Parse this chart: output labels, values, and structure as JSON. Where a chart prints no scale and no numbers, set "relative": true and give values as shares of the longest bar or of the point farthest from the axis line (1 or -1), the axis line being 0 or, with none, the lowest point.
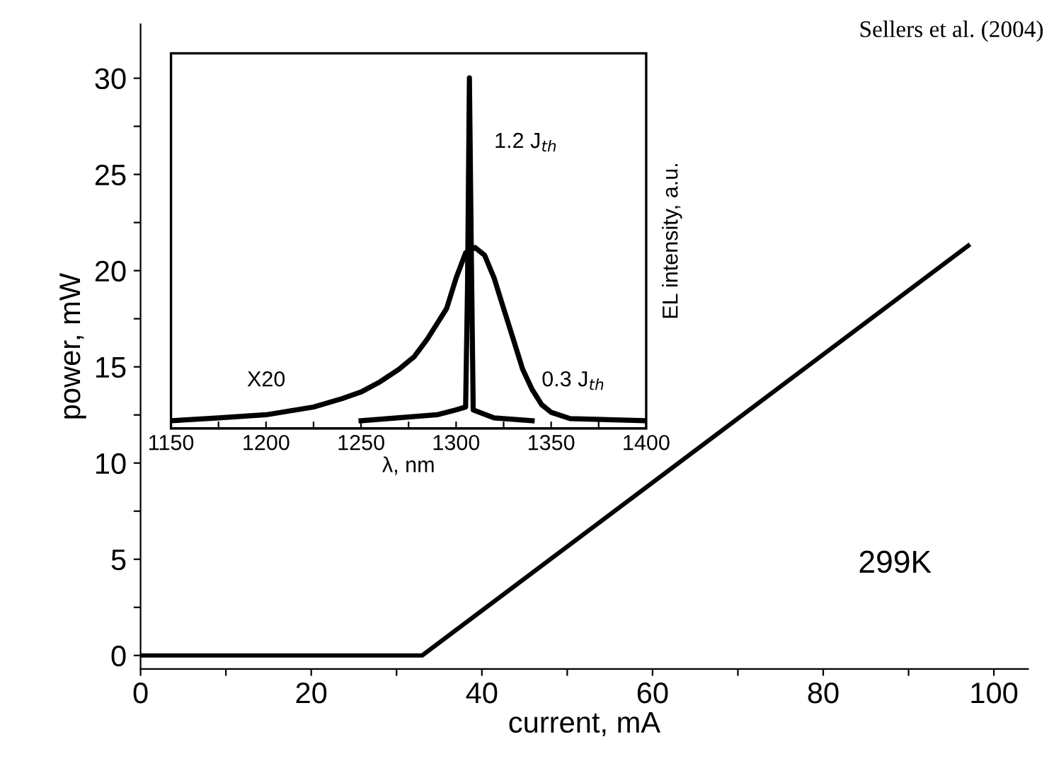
{
  "chart_data": [
    {
      "type": "line",
      "xlabel": "current, mA",
      "ylabel": "power, mW",
      "series": [
        {
          "color": "#000000",
          "x": [
            0,
            33,
            97
          ],
          "values": [
            0,
            0,
            21.3
          ]
        }
      ],
      "xlim": [
        0,
        104
      ],
      "ylim": [
        -0.7,
        32.8
      ],
      "xticks": [
        0,
        {
          "value": 10,
          "label": null
        },
        20,
        {
          "value": 30,
          "label": null
        },
        40,
        {
          "value": 50,
          "label": null
        },
        60,
        {
          "value": 70,
          "label": null
        },
        80,
        {
          "value": 90,
          "label": null
        },
        100
      ],
      "yticks": [
        0,
        {
          "value": 2.5,
          "label": null
        },
        5,
        {
          "value": 7.5,
          "label": null
        },
        10,
        {
          "value": 12.5,
          "label": null
        },
        15,
        {
          "value": 17.5,
          "label": null
        },
        20,
        {
          "value": 22.5,
          "label": null
        },
        25,
        {
          "value": 27.5,
          "label": null
        },
        30
      ],
      "annotations": [
        "Sellers et al. (2004)",
        "299K"
      ],
      "grid": false,
      "legend": false
    },
    {
      "type": "line",
      "xlabel": "λ, nm",
      "ylabel": "EL intensity, a.u.",
      "relative": true,
      "series": [
        {
          "name": "0.3 J$_{th}$",
          "color": "#000000",
          "x": [
            1150,
            1175,
            1200,
            1225,
            1240,
            1250,
            1260,
            1270,
            1278,
            1285,
            1290,
            1295,
            1300,
            1305,
            1310,
            1315,
            1320,
            1325,
            1330,
            1335,
            1340,
            1345,
            1350,
            1360,
            1400
          ],
          "values": [
            0.022,
            0.03,
            0.039,
            0.061,
            0.085,
            0.104,
            0.133,
            0.169,
            0.205,
            0.256,
            0.299,
            0.342,
            0.429,
            0.501,
            0.516,
            0.494,
            0.429,
            0.342,
            0.256,
            0.169,
            0.111,
            0.068,
            0.046,
            0.028,
            0.022
          ]
        },
        {
          "name": "1.2 J$_{th}$",
          "color": "#000000",
          "x": [
            1250,
            1290,
            1300,
            1305,
            1306,
            1307,
            1308,
            1309,
            1320,
            1340
          ],
          "values": [
            0.022,
            0.039,
            0.053,
            0.061,
            0.4,
            1.0,
            0.5,
            0.053,
            0.03,
            0.022
          ]
        }
      ],
      "xlim": [
        1150,
        1400
      ],
      "xticks": [
        1150,
        {
          "value": 1175,
          "label": null
        },
        1200,
        {
          "value": 1225,
          "label": null
        },
        1250,
        {
          "value": 1275,
          "label": null
        },
        1300,
        {
          "value": 1325,
          "label": null
        },
        1350,
        {
          "value": 1375,
          "label": null
        },
        1400
      ],
      "annotations": [
        "X20"
      ],
      "grid": false,
      "legend": false
    }
  ]
}
